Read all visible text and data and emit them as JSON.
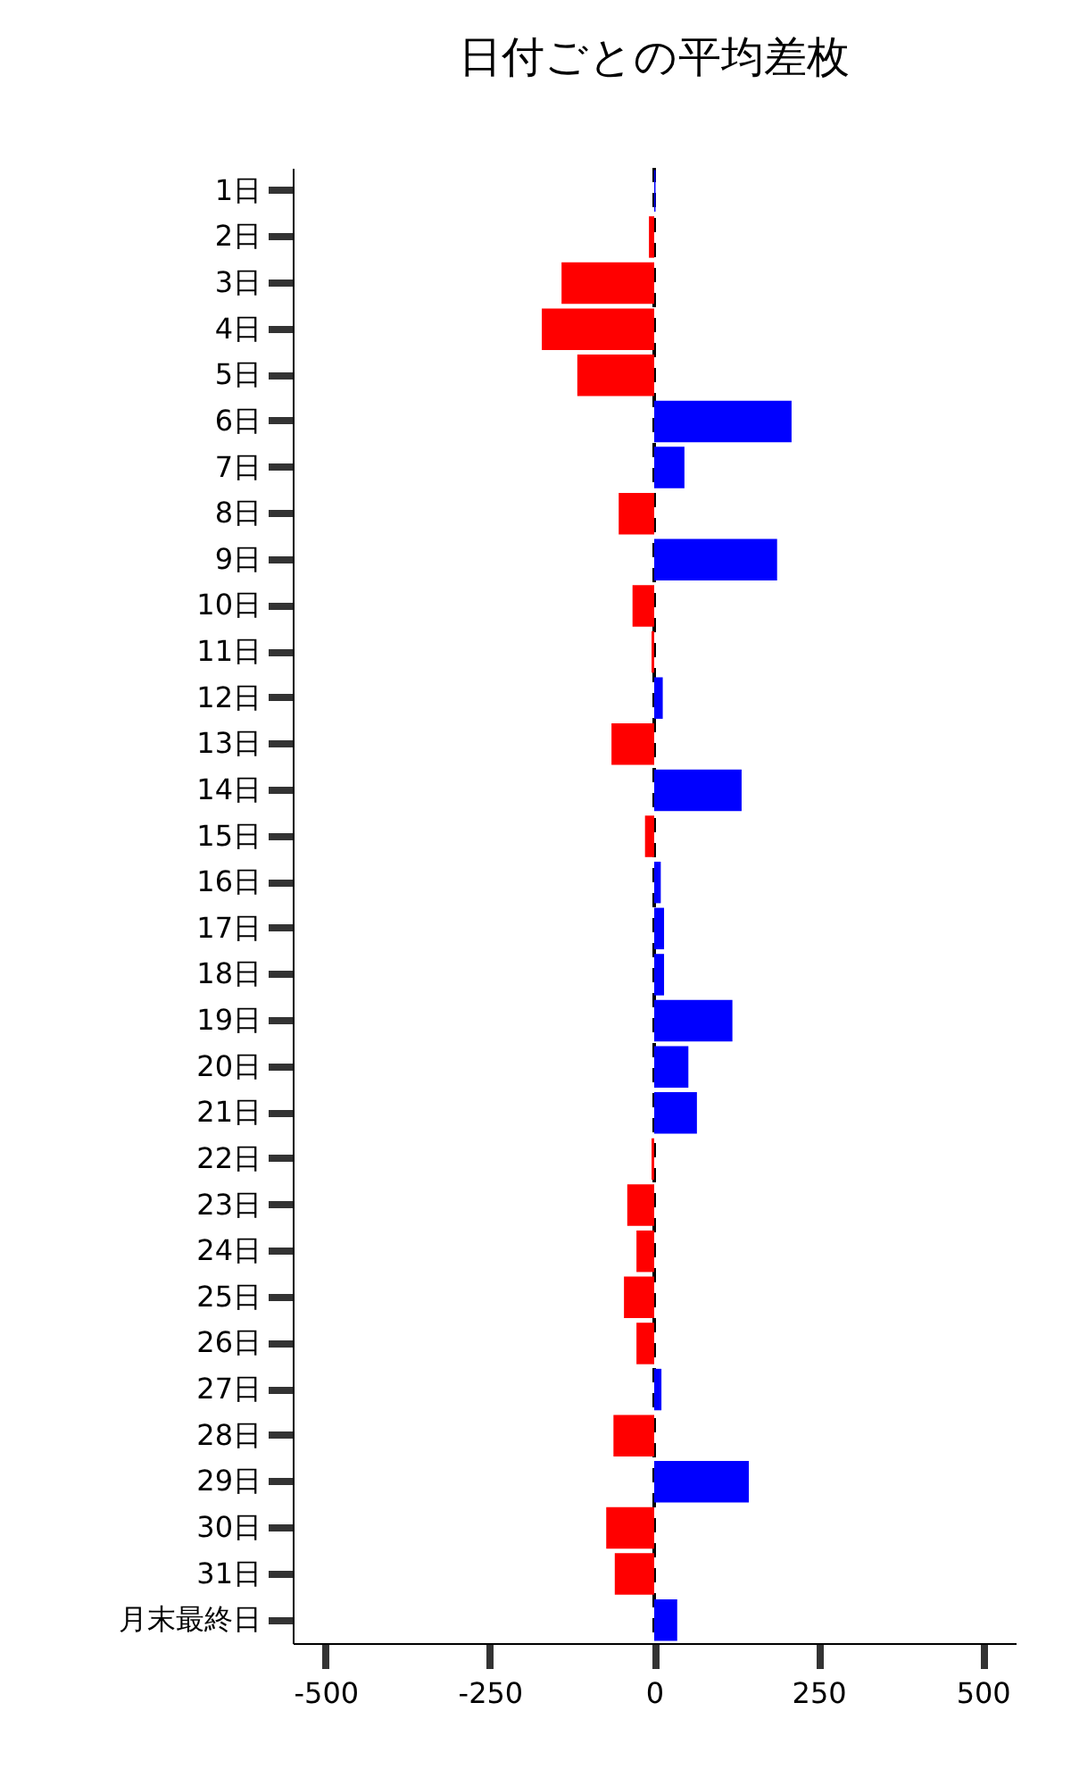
{
  "chart_data": {
    "type": "bar",
    "orientation": "horizontal",
    "title": "日付ごとの平均差枚",
    "categories": [
      "1日",
      "2日",
      "3日",
      "4日",
      "5日",
      "6日",
      "7日",
      "8日",
      "9日",
      "10日",
      "11日",
      "12日",
      "13日",
      "14日",
      "15日",
      "16日",
      "17日",
      "18日",
      "19日",
      "20日",
      "21日",
      "22日",
      "23日",
      "24日",
      "25日",
      "26日",
      "27日",
      "28日",
      "29日",
      "30日",
      "31日",
      "月末最終日"
    ],
    "values": [
      2,
      -8,
      -141,
      -171,
      -117,
      209,
      46,
      -54,
      187,
      -33,
      -4,
      13,
      -65,
      133,
      -14,
      10,
      15,
      15,
      119,
      52,
      65,
      -4,
      -41,
      -27,
      -46,
      -27,
      11,
      -62,
      144,
      -73,
      -60,
      35
    ],
    "colors": [
      "#0000ff",
      "#ff0000",
      "#ff0000",
      "#ff0000",
      "#ff0000",
      "#0000ff",
      "#0000ff",
      "#ff0000",
      "#0000ff",
      "#ff0000",
      "#ff0000",
      "#0000ff",
      "#ff0000",
      "#0000ff",
      "#ff0000",
      "#0000ff",
      "#0000ff",
      "#0000ff",
      "#0000ff",
      "#0000ff",
      "#0000ff",
      "#ff0000",
      "#ff0000",
      "#ff0000",
      "#ff0000",
      "#ff0000",
      "#0000ff",
      "#ff0000",
      "#0000ff",
      "#ff0000",
      "#ff0000",
      "#0000ff"
    ],
    "xlim": [
      -550,
      550
    ],
    "xticks": [
      -500,
      -250,
      0,
      250,
      500
    ],
    "ref_lines": [
      {
        "axis": "x",
        "value": 0,
        "color": "#000000",
        "line_style": "dashed"
      }
    ],
    "grid": false
  }
}
